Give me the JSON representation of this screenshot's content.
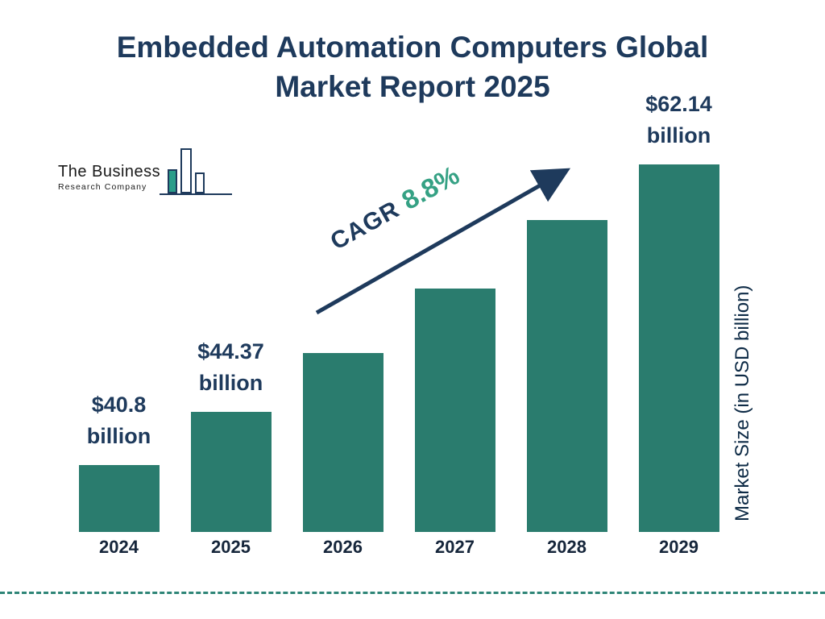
{
  "title": "Embedded Automation Computers Global Market Report 2025",
  "logo": {
    "line1": "The Business",
    "line2": "Research Company"
  },
  "colors": {
    "bar": "#2A7C6E",
    "accent_green": "#35A184",
    "navy": "#1E3A5C",
    "dash_line": "#2E8577"
  },
  "chart_data": {
    "type": "bar",
    "title": "Embedded Automation Computers Global Market Report 2025",
    "categories": [
      "2024",
      "2025",
      "2026",
      "2027",
      "2028",
      "2029"
    ],
    "values": [
      40.8,
      44.37,
      48.3,
      52.6,
      57.2,
      62.14
    ],
    "value_labels": [
      "$40.8 billion",
      "$44.37 billion",
      "",
      "",
      "",
      "$62.14 billion"
    ],
    "cagr_label": "CAGR",
    "cagr_value": "8.8%",
    "xlabel": "",
    "ylabel": "Market Size (in USD billion)",
    "ylim": [
      36.3,
      66
    ],
    "grid": false,
    "legend": "none"
  }
}
